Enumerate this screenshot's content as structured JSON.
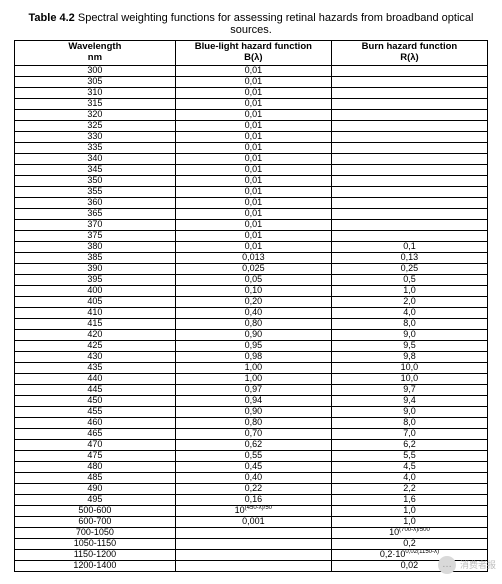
{
  "caption": {
    "label": "Table 4.2",
    "text": "Spectral weighting functions for assessing retinal hazards from broadband optical sources."
  },
  "table": {
    "columns": [
      {
        "line1": "Wavelength",
        "line2": "nm"
      },
      {
        "line1": "Blue-light hazard function",
        "line2": "B(λ)"
      },
      {
        "line1": "Burn hazard function",
        "line2": "R(λ)"
      }
    ],
    "col_widths_pct": [
      34,
      33,
      33
    ],
    "border_color": "#000000",
    "font_size_pt": 7,
    "header_font_size_pt": 7.5,
    "rows": [
      {
        "w": "300",
        "b": "0,01",
        "r": ""
      },
      {
        "w": "305",
        "b": "0,01",
        "r": ""
      },
      {
        "w": "310",
        "b": "0,01",
        "r": ""
      },
      {
        "w": "315",
        "b": "0,01",
        "r": ""
      },
      {
        "w": "320",
        "b": "0,01",
        "r": ""
      },
      {
        "w": "325",
        "b": "0,01",
        "r": ""
      },
      {
        "w": "330",
        "b": "0,01",
        "r": ""
      },
      {
        "w": "335",
        "b": "0,01",
        "r": ""
      },
      {
        "w": "340",
        "b": "0,01",
        "r": ""
      },
      {
        "w": "345",
        "b": "0,01",
        "r": ""
      },
      {
        "w": "350",
        "b": "0,01",
        "r": ""
      },
      {
        "w": "355",
        "b": "0,01",
        "r": ""
      },
      {
        "w": "360",
        "b": "0,01",
        "r": ""
      },
      {
        "w": "365",
        "b": "0,01",
        "r": ""
      },
      {
        "w": "370",
        "b": "0,01",
        "r": ""
      },
      {
        "w": "375",
        "b": "0,01",
        "r": ""
      },
      {
        "w": "380",
        "b": "0,01",
        "r": "0,1"
      },
      {
        "w": "385",
        "b": "0,013",
        "r": "0,13"
      },
      {
        "w": "390",
        "b": "0,025",
        "r": "0,25"
      },
      {
        "w": "395",
        "b": "0,05",
        "r": "0,5"
      },
      {
        "w": "400",
        "b": "0,10",
        "r": "1,0"
      },
      {
        "w": "405",
        "b": "0,20",
        "r": "2,0"
      },
      {
        "w": "410",
        "b": "0,40",
        "r": "4,0"
      },
      {
        "w": "415",
        "b": "0,80",
        "r": "8,0"
      },
      {
        "w": "420",
        "b": "0,90",
        "r": "9,0"
      },
      {
        "w": "425",
        "b": "0,95",
        "r": "9,5"
      },
      {
        "w": "430",
        "b": "0,98",
        "r": "9,8"
      },
      {
        "w": "435",
        "b": "1,00",
        "r": "10,0"
      },
      {
        "w": "440",
        "b": "1,00",
        "r": "10,0"
      },
      {
        "w": "445",
        "b": "0,97",
        "r": "9,7"
      },
      {
        "w": "450",
        "b": "0,94",
        "r": "9,4"
      },
      {
        "w": "455",
        "b": "0,90",
        "r": "9,0"
      },
      {
        "w": "460",
        "b": "0,80",
        "r": "8,0"
      },
      {
        "w": "465",
        "b": "0,70",
        "r": "7,0"
      },
      {
        "w": "470",
        "b": "0,62",
        "r": "6,2"
      },
      {
        "w": "475",
        "b": "0,55",
        "r": "5,5"
      },
      {
        "w": "480",
        "b": "0,45",
        "r": "4,5"
      },
      {
        "w": "485",
        "b": "0,40",
        "r": "4,0"
      },
      {
        "w": "490",
        "b": "0,22",
        "r": "2,2"
      },
      {
        "w": "495",
        "b": "0,16",
        "r": "1,6"
      },
      {
        "w": "500-600",
        "b_html": "10<sup>(450-λ)/50</sup>",
        "r": "1,0"
      },
      {
        "w": "600-700",
        "b": "0,001",
        "r": "1,0"
      },
      {
        "w": "700-1050",
        "b": "",
        "r_html": "10<sup>(700-λ)/500</sup>"
      },
      {
        "w": "1050-1150",
        "b": "",
        "r": "0,2"
      },
      {
        "w": "1150-1200",
        "b": "",
        "r_html": "0,2·10<sup>0,02(1150-λ)</sup>"
      },
      {
        "w": "1200-1400",
        "b": "",
        "r": "0,02"
      }
    ]
  },
  "watermark": {
    "icon_glyph": "…",
    "text": "消费者报"
  }
}
